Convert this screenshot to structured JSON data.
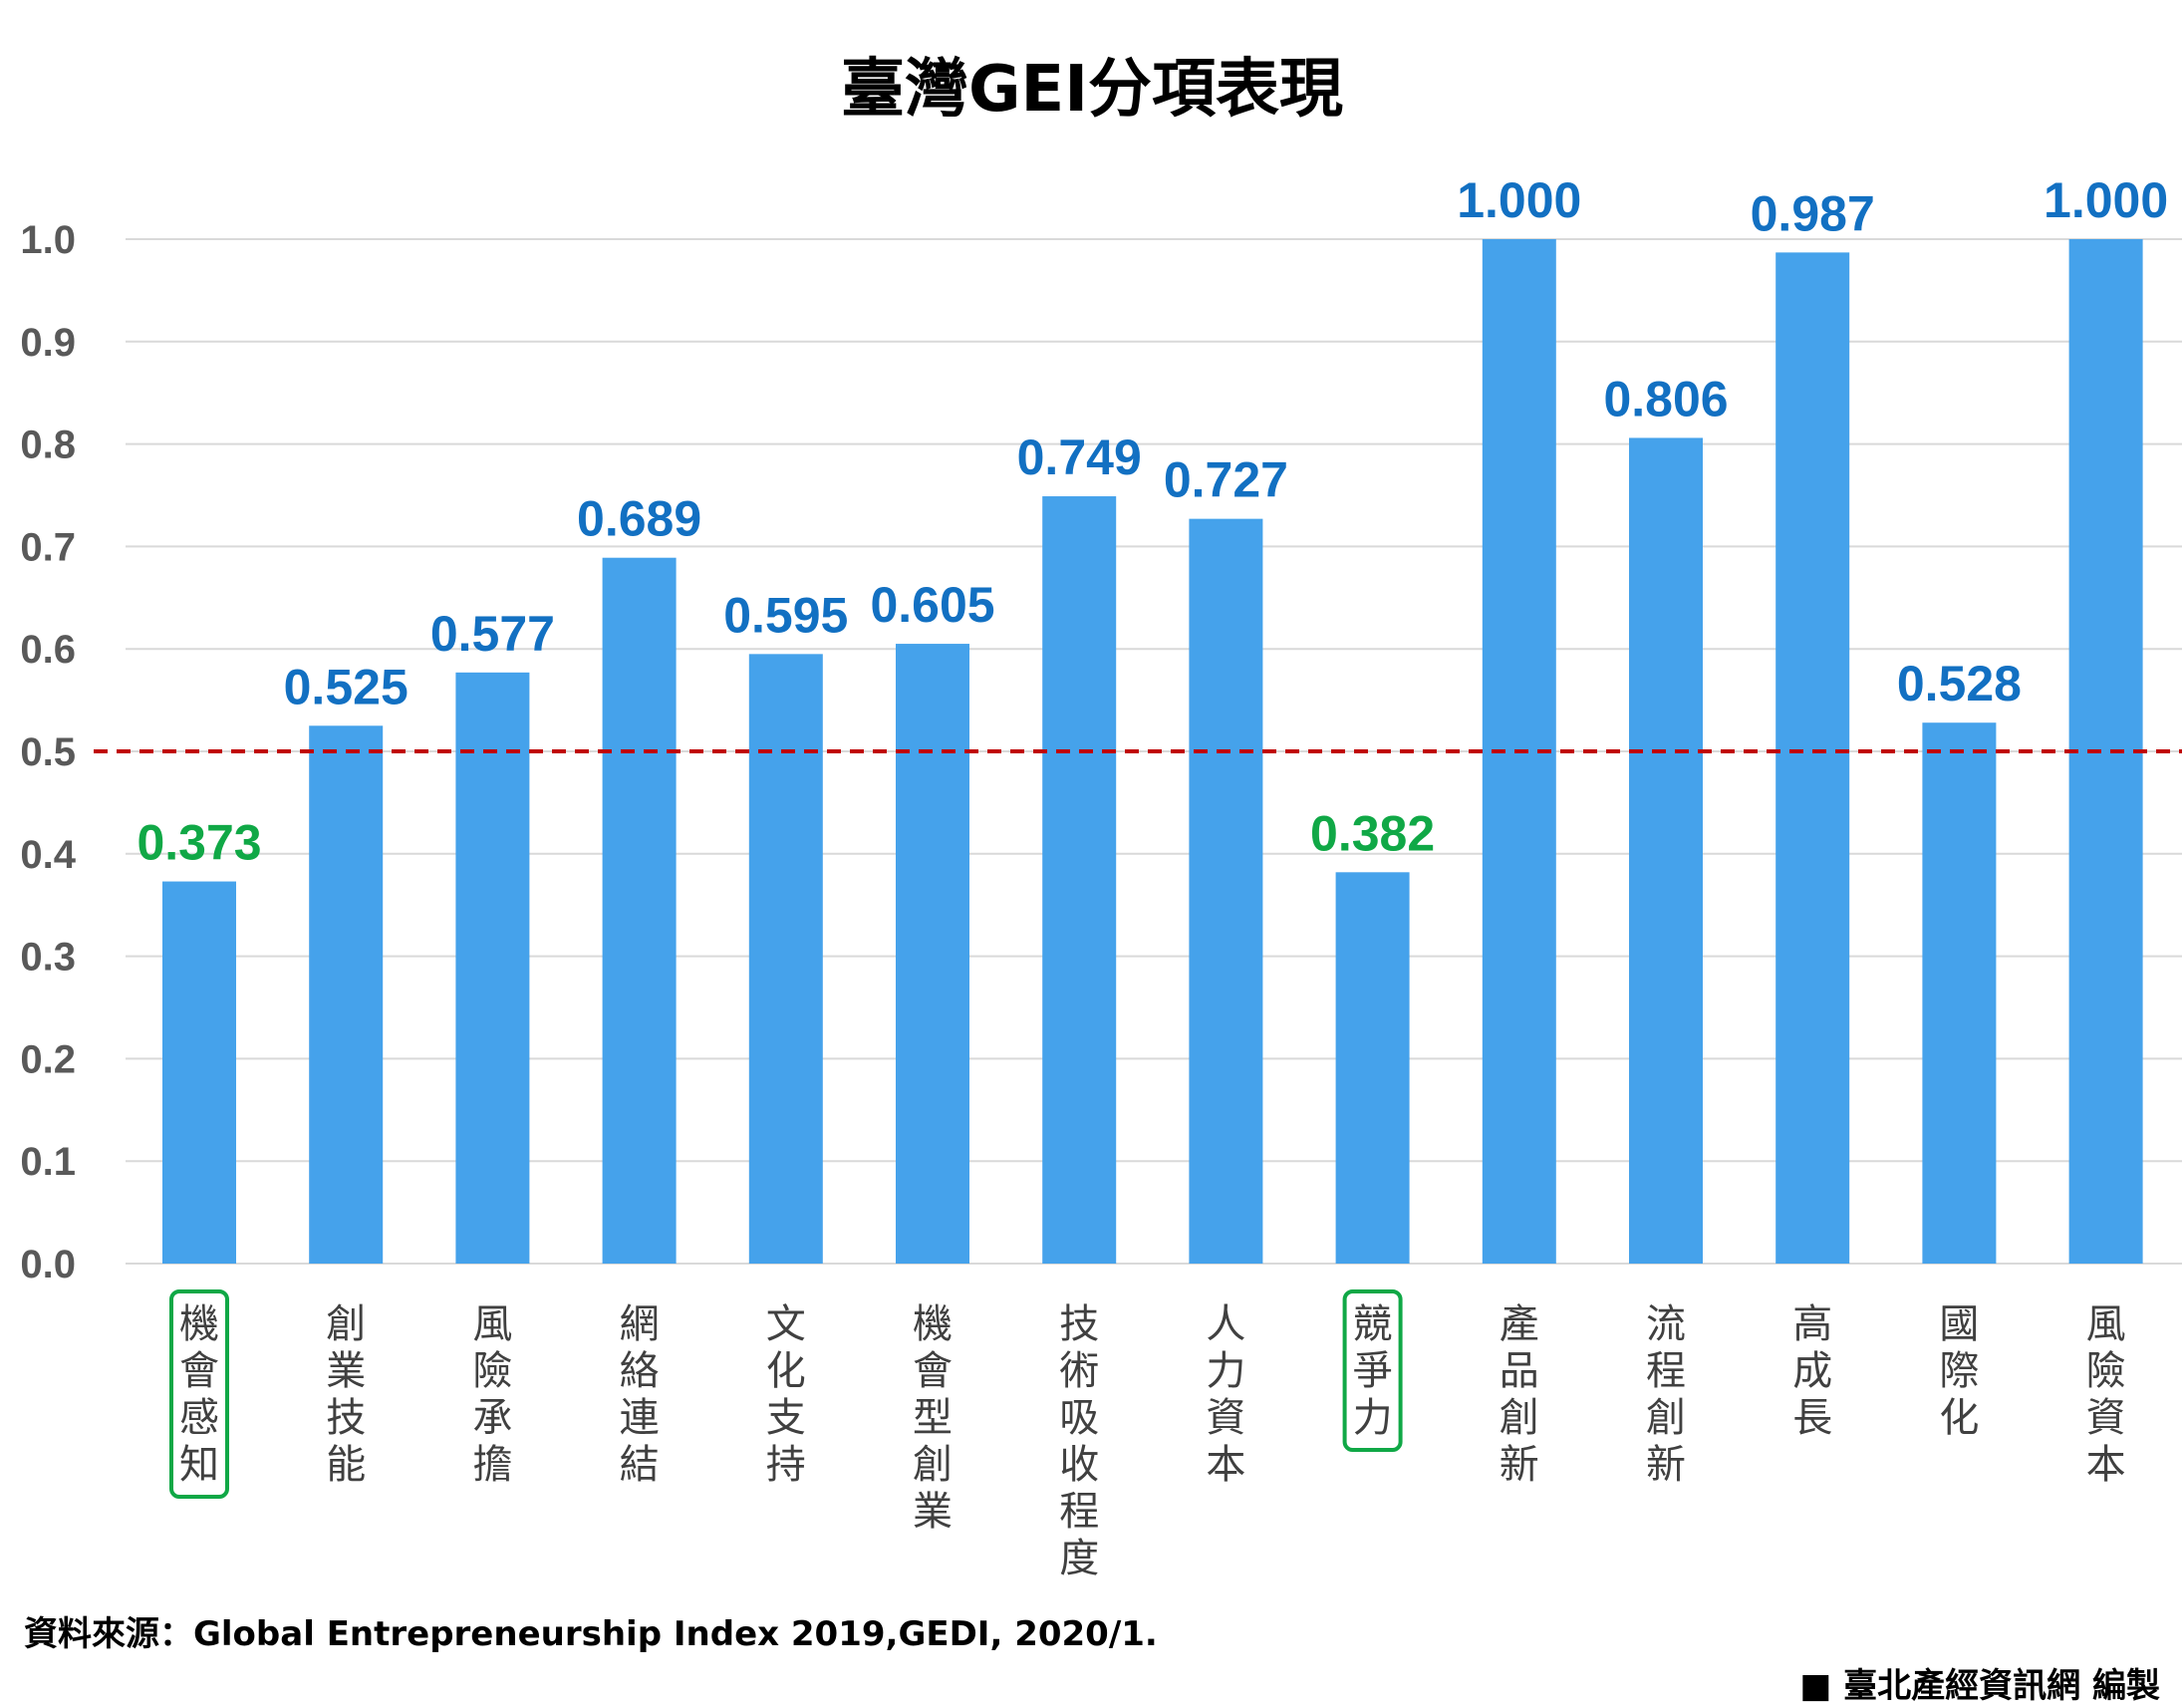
{
  "chart_data": {
    "type": "bar",
    "title": "臺灣GEI分項表現",
    "categories": [
      "機會感知",
      "創業技能",
      "風險承擔",
      "網絡連結",
      "文化支持",
      "機會型創業",
      "技術吸收程度",
      "人力資本",
      "競爭力",
      "產品創新",
      "流程創新",
      "高成長",
      "國際化",
      "風險資本"
    ],
    "values": [
      0.373,
      0.525,
      0.577,
      0.689,
      0.595,
      0.605,
      0.749,
      0.727,
      0.382,
      1.0,
      0.806,
      0.987,
      0.528,
      1.0
    ],
    "value_labels": [
      "0.373",
      "0.525",
      "0.577",
      "0.689",
      "0.595",
      "0.605",
      "0.749",
      "0.727",
      "0.382",
      "1.000",
      "0.806",
      "0.987",
      "0.528",
      "1.000"
    ],
    "highlighted": [
      "機會感知",
      "競爭力"
    ],
    "reference_line": 0.5,
    "ylim": [
      0,
      1.0
    ],
    "y_ticks": [
      "0.0",
      "0.1",
      "0.2",
      "0.3",
      "0.4",
      "0.5",
      "0.6",
      "0.7",
      "0.8",
      "0.9",
      "1.0"
    ],
    "grid": true,
    "legend": "none"
  },
  "colors": {
    "bar": "#45A2EB",
    "label_normal": "#1270C2",
    "label_highlight": "#10A846",
    "highlight_box": "#10A846",
    "reference_line": "#C00000",
    "grid": "#D9D9D9"
  },
  "source": "資料來源：Global Entrepreneurship Index 2019,GEDI, 2020/1.",
  "credit": "■ 臺北產經資訊網  編製"
}
